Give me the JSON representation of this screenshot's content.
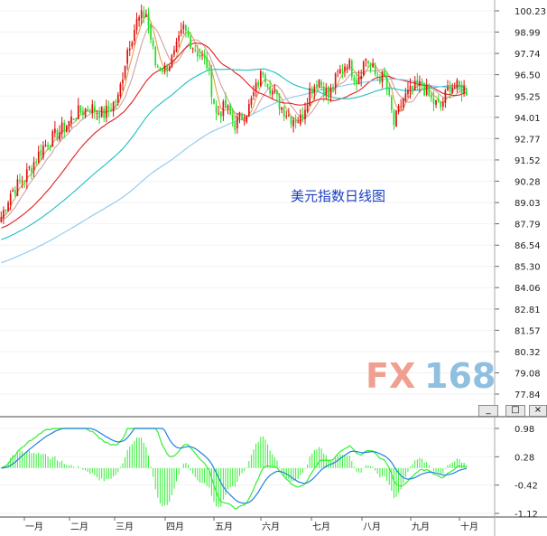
{
  "chart_data": [
    {
      "type": "candlestick",
      "title": "美元指数日线图",
      "y_ticks": [
        "100.23",
        "98.99",
        "97.74",
        "96.50",
        "95.25",
        "94.01",
        "92.77",
        "91.52",
        "90.28",
        "89.03",
        "87.79",
        "86.54",
        "85.30",
        "84.06",
        "82.81",
        "81.57",
        "80.32",
        "79.08",
        "77.84"
      ],
      "ylim": [
        77.84,
        100.23
      ],
      "x_months": [
        "一月",
        "二月",
        "三月",
        "四月",
        "五月",
        "六月",
        "七月",
        "八月",
        "九月",
        "十月"
      ],
      "trading_days": 200,
      "anchors": [
        {
          "day": 0,
          "value": 88.2
        },
        {
          "day": 4,
          "value": 89.6
        },
        {
          "day": 10,
          "value": 90.5
        },
        {
          "day": 18,
          "value": 92.3
        },
        {
          "day": 26,
          "value": 93.3
        },
        {
          "day": 32,
          "value": 94.2
        },
        {
          "day": 38,
          "value": 94.6
        },
        {
          "day": 44,
          "value": 94.2
        },
        {
          "day": 50,
          "value": 95.1
        },
        {
          "day": 54,
          "value": 98.0
        },
        {
          "day": 58,
          "value": 99.6
        },
        {
          "day": 62,
          "value": 100.1
        },
        {
          "day": 66,
          "value": 97.1
        },
        {
          "day": 70,
          "value": 96.8
        },
        {
          "day": 74,
          "value": 97.6
        },
        {
          "day": 78,
          "value": 99.2
        },
        {
          "day": 82,
          "value": 98.2
        },
        {
          "day": 88,
          "value": 97.1
        },
        {
          "day": 92,
          "value": 94.2
        },
        {
          "day": 96,
          "value": 94.6
        },
        {
          "day": 100,
          "value": 93.6
        },
        {
          "day": 106,
          "value": 94.6
        },
        {
          "day": 112,
          "value": 96.8
        },
        {
          "day": 116,
          "value": 95.5
        },
        {
          "day": 120,
          "value": 94.6
        },
        {
          "day": 124,
          "value": 94.0
        },
        {
          "day": 128,
          "value": 93.9
        },
        {
          "day": 132,
          "value": 95.6
        },
        {
          "day": 136,
          "value": 96.2
        },
        {
          "day": 140,
          "value": 95.2
        },
        {
          "day": 144,
          "value": 96.5
        },
        {
          "day": 148,
          "value": 97.3
        },
        {
          "day": 152,
          "value": 96.2
        },
        {
          "day": 156,
          "value": 97.5
        },
        {
          "day": 160,
          "value": 96.5
        },
        {
          "day": 164,
          "value": 96.3
        },
        {
          "day": 168,
          "value": 93.6
        },
        {
          "day": 172,
          "value": 95.1
        },
        {
          "day": 176,
          "value": 95.6
        },
        {
          "day": 180,
          "value": 95.9
        },
        {
          "day": 184,
          "value": 95.0
        },
        {
          "day": 188,
          "value": 94.6
        },
        {
          "day": 192,
          "value": 95.9
        },
        {
          "day": 196,
          "value": 95.7
        },
        {
          "day": 199,
          "value": 95.6
        }
      ],
      "moving_averages": [
        {
          "period": 5,
          "color": "#e0a050"
        },
        {
          "period": 10,
          "color": "#d4a0a0"
        },
        {
          "period": 30,
          "color": "#e02020"
        },
        {
          "period": 60,
          "color": "#20c0c0"
        },
        {
          "period": 120,
          "color": "#8cc8f0"
        }
      ],
      "colors": {
        "up": "#e01010",
        "down": "#22dd22",
        "background": "#ffffff",
        "title": "#1a3fbf"
      }
    },
    {
      "type": "macd",
      "y_ticks": [
        "0.98",
        "0.28",
        "-0.42",
        "-1.12"
      ],
      "ylim": [
        -1.12,
        0.98
      ],
      "colors": {
        "dif": "#33ee33",
        "dea": "#2080e0",
        "histogram": "#33ee33"
      }
    }
  ],
  "watermark": {
    "prefix": "FX",
    "suffix": "168",
    "prefix_color": "#f0a090",
    "suffix_color": "#90c0e0"
  },
  "window_buttons": [
    "_",
    "□",
    "×"
  ]
}
